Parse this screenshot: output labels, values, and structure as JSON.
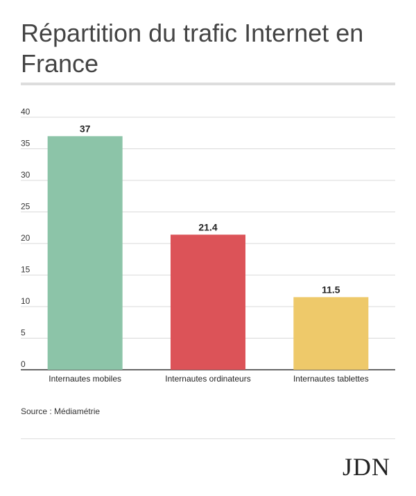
{
  "chart_data": {
    "type": "bar",
    "title": "Répartition du trafic Internet en France",
    "categories": [
      "Internautes mobiles",
      "Internautes ordinateurs",
      "Internautes tablettes"
    ],
    "values": [
      37,
      21.4,
      11.5
    ],
    "value_labels": [
      "37",
      "21.4",
      "11.5"
    ],
    "colors": [
      "#8cc4a8",
      "#dc5358",
      "#eec96a"
    ],
    "ylim": [
      0,
      40
    ],
    "yticks": [
      0,
      5,
      10,
      15,
      20,
      25,
      30,
      35,
      40
    ],
    "grid": true,
    "xlabel": "",
    "ylabel": ""
  },
  "source": "Source : Médiamétrie",
  "logo": "JDN"
}
